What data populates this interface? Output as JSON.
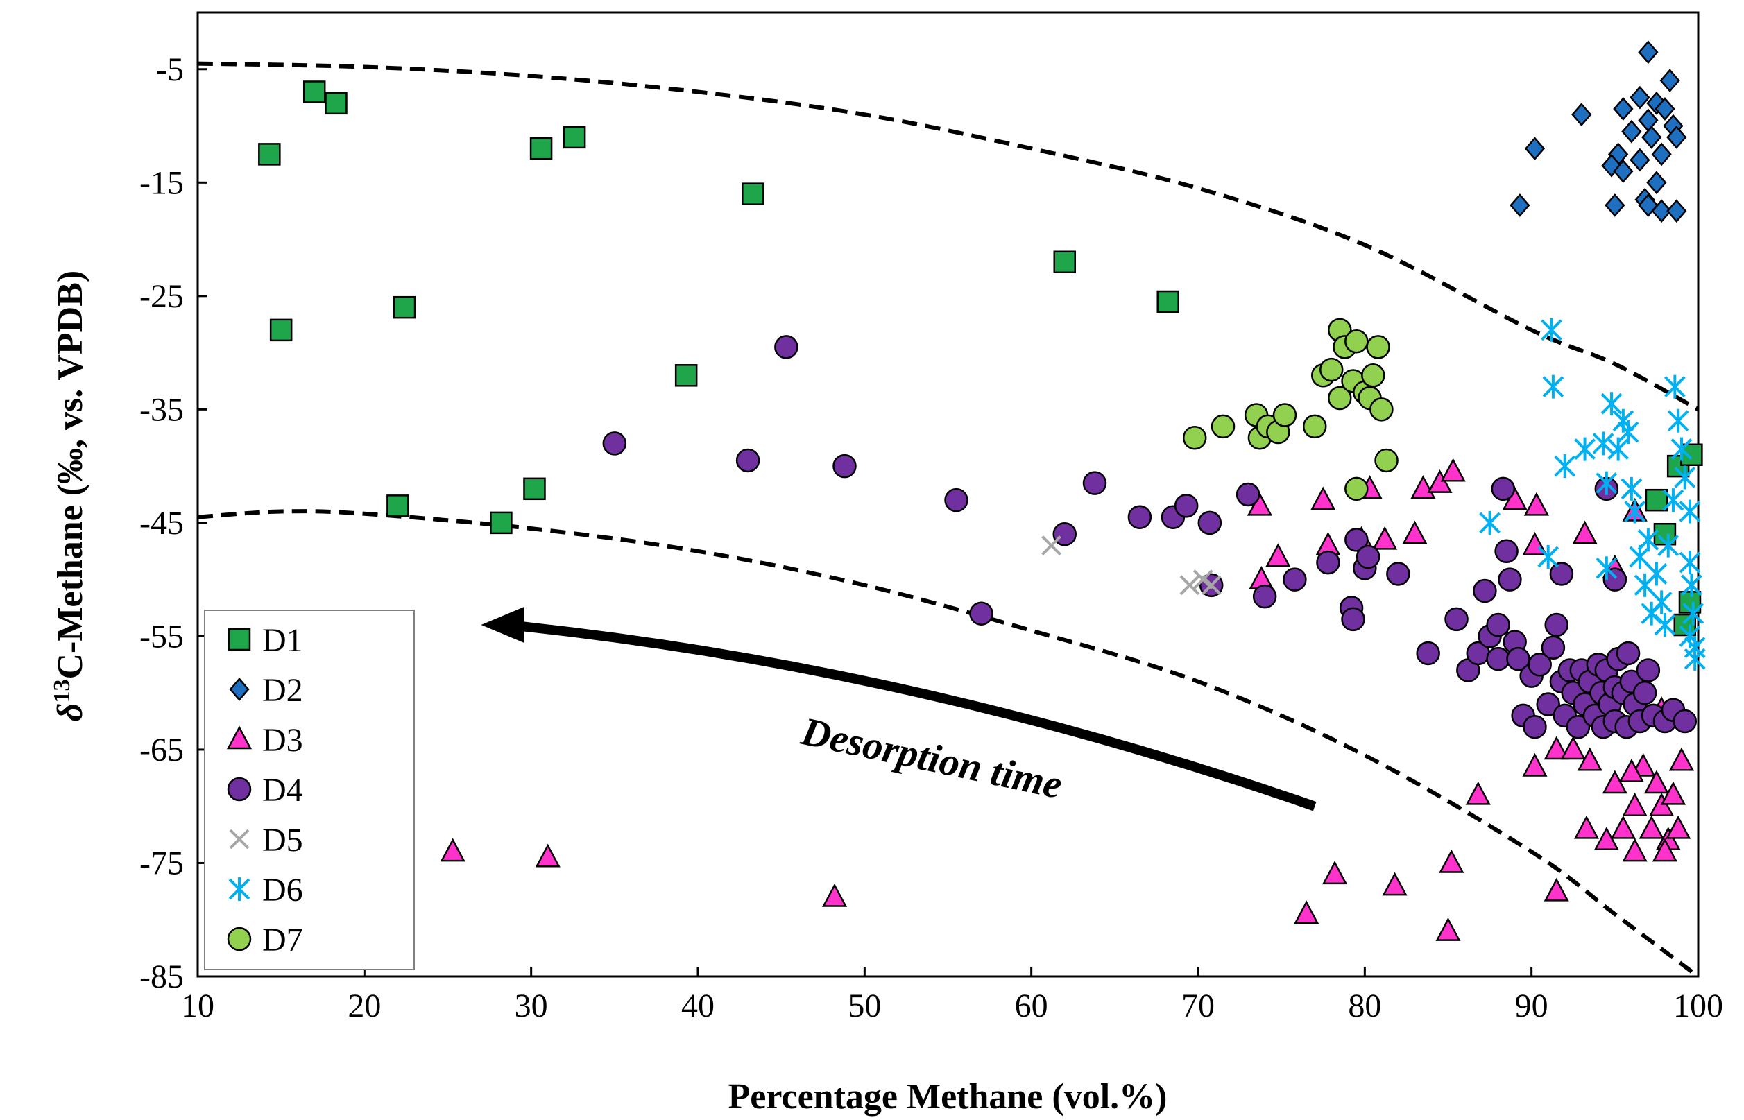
{
  "chart_data": {
    "type": "scatter",
    "title": "",
    "xlabel": "Percentage Methane (vol.%)",
    "ylabel_parts": [
      "δ",
      "13",
      "C-Methane (‰, vs. VPDB)"
    ],
    "xlim": [
      10,
      100
    ],
    "ylim": [
      -85,
      0
    ],
    "xticks": [
      10,
      20,
      30,
      40,
      50,
      60,
      70,
      80,
      90,
      100
    ],
    "yticks": [
      -5,
      -15,
      -25,
      -35,
      -45,
      -55,
      -65,
      -75,
      -85
    ],
    "grid": false,
    "legend_position": "bottom-left",
    "annotation": {
      "text": "Desorption time",
      "arrow_from": [
        77,
        -70
      ],
      "arrow_to": [
        27,
        -54
      ]
    },
    "envelope_curves": [
      {
        "name": "upper-bound",
        "points": [
          [
            10,
            -4.5
          ],
          [
            20,
            -4.8
          ],
          [
            30,
            -5.6
          ],
          [
            40,
            -7
          ],
          [
            50,
            -9
          ],
          [
            60,
            -12
          ],
          [
            70,
            -15.5
          ],
          [
            80,
            -20.5
          ],
          [
            90,
            -28
          ],
          [
            95,
            -31
          ],
          [
            100,
            -35
          ]
        ]
      },
      {
        "name": "lower-bound",
        "points": [
          [
            10,
            -44.5
          ],
          [
            15,
            -44
          ],
          [
            20,
            -44.2
          ],
          [
            30,
            -45.5
          ],
          [
            40,
            -47.5
          ],
          [
            50,
            -50.5
          ],
          [
            60,
            -54.5
          ],
          [
            70,
            -59
          ],
          [
            80,
            -65.5
          ],
          [
            90,
            -74
          ],
          [
            95,
            -79.5
          ],
          [
            100,
            -85
          ]
        ]
      }
    ],
    "series": [
      {
        "name": "D1",
        "marker": "square",
        "color": "#1fa64a",
        "points": [
          [
            14.3,
            -12.5
          ],
          [
            17,
            -7
          ],
          [
            18.3,
            -8
          ],
          [
            15,
            -28
          ],
          [
            22.4,
            -26
          ],
          [
            30.6,
            -12
          ],
          [
            32.6,
            -11
          ],
          [
            43.3,
            -16
          ],
          [
            39.3,
            -32
          ],
          [
            22,
            -43.5
          ],
          [
            28.2,
            -45
          ],
          [
            30.2,
            -42
          ],
          [
            62,
            -22
          ],
          [
            68.2,
            -25.5
          ],
          [
            97.5,
            -43
          ],
          [
            98,
            -46
          ],
          [
            98.8,
            -40
          ],
          [
            99.6,
            -39
          ],
          [
            99.2,
            -54
          ],
          [
            99.5,
            -52
          ]
        ]
      },
      {
        "name": "D2",
        "marker": "diamond",
        "color": "#1f6fc0",
        "points": [
          [
            97,
            -3.5
          ],
          [
            98.3,
            -6
          ],
          [
            96.5,
            -7.5
          ],
          [
            97.5,
            -8
          ],
          [
            95.5,
            -8.5
          ],
          [
            98,
            -8.5
          ],
          [
            93,
            -9
          ],
          [
            97,
            -9.5
          ],
          [
            98.5,
            -10
          ],
          [
            96,
            -10.5
          ],
          [
            97.2,
            -11
          ],
          [
            98.7,
            -11
          ],
          [
            90.2,
            -12
          ],
          [
            95.2,
            -12.5
          ],
          [
            97.8,
            -12.5
          ],
          [
            96.5,
            -13
          ],
          [
            94.8,
            -13.5
          ],
          [
            95.5,
            -14
          ],
          [
            97.5,
            -15
          ],
          [
            89.3,
            -17
          ],
          [
            95,
            -17
          ],
          [
            96.8,
            -16.5
          ],
          [
            97.8,
            -17.5
          ],
          [
            98.7,
            -17.5
          ],
          [
            97,
            -17
          ]
        ]
      },
      {
        "name": "D3",
        "marker": "triangle",
        "color": "#ff33cc",
        "points": [
          [
            25.3,
            -74
          ],
          [
            31,
            -74.5
          ],
          [
            48.2,
            -78
          ],
          [
            76.5,
            -79.5
          ],
          [
            78.2,
            -76
          ],
          [
            81.8,
            -77
          ],
          [
            85,
            -81
          ],
          [
            85.2,
            -75
          ],
          [
            86.8,
            -69
          ],
          [
            91.5,
            -77.5
          ],
          [
            73.7,
            -43.5
          ],
          [
            73.8,
            -50
          ],
          [
            74.8,
            -48
          ],
          [
            77.5,
            -43
          ],
          [
            77.8,
            -47
          ],
          [
            79.8,
            -46.5
          ],
          [
            80.3,
            -42
          ],
          [
            81.2,
            -46.5
          ],
          [
            83,
            -46
          ],
          [
            83.5,
            -42
          ],
          [
            84.5,
            -41.5
          ],
          [
            85.3,
            -40.5
          ],
          [
            89,
            -43
          ],
          [
            90.3,
            -43.5
          ],
          [
            90.2,
            -47
          ],
          [
            93.2,
            -46
          ],
          [
            95,
            -49
          ],
          [
            96.2,
            -44
          ],
          [
            90.2,
            -66.5
          ],
          [
            91.5,
            -65
          ],
          [
            92.5,
            -65
          ],
          [
            93.5,
            -66
          ],
          [
            93.3,
            -72
          ],
          [
            94.5,
            -73
          ],
          [
            95,
            -68
          ],
          [
            96.2,
            -70
          ],
          [
            96.2,
            -74
          ],
          [
            96.7,
            -66.5
          ],
          [
            97.2,
            -72
          ],
          [
            97.5,
            -68
          ],
          [
            97.8,
            -70
          ],
          [
            98.2,
            -73
          ],
          [
            98,
            -74
          ],
          [
            98.5,
            -69
          ],
          [
            98.8,
            -72
          ],
          [
            99,
            -66
          ],
          [
            96.3,
            -62
          ],
          [
            97.8,
            -61.5
          ],
          [
            96,
            -67
          ],
          [
            95.5,
            -72
          ]
        ]
      },
      {
        "name": "D4",
        "marker": "circle",
        "color": "#7030a0",
        "points": [
          [
            45.3,
            -29.5
          ],
          [
            35,
            -38
          ],
          [
            43,
            -39.5
          ],
          [
            48.8,
            -40
          ],
          [
            55.5,
            -43
          ],
          [
            63.8,
            -41.5
          ],
          [
            62,
            -46
          ],
          [
            57,
            -53
          ],
          [
            66.5,
            -44.5
          ],
          [
            68.5,
            -44.5
          ],
          [
            69.3,
            -43.5
          ],
          [
            70.7,
            -45
          ],
          [
            70.8,
            -50.5
          ],
          [
            73,
            -42.5
          ],
          [
            74,
            -51.5
          ],
          [
            75.8,
            -50
          ],
          [
            77.8,
            -48.5
          ],
          [
            79.2,
            -52.5
          ],
          [
            79.3,
            -53.5
          ],
          [
            79.5,
            -46.5
          ],
          [
            80,
            -49
          ],
          [
            80.2,
            -48
          ],
          [
            82,
            -49.5
          ],
          [
            83.8,
            -56.5
          ],
          [
            85.5,
            -53.5
          ],
          [
            86.2,
            -58
          ],
          [
            86.8,
            -56.5
          ],
          [
            87.2,
            -51
          ],
          [
            87.5,
            -55
          ],
          [
            88,
            -57
          ],
          [
            88,
            -54
          ],
          [
            88.3,
            -42
          ],
          [
            88.5,
            -47.5
          ],
          [
            88.7,
            -50
          ],
          [
            89,
            -55.5
          ],
          [
            89.2,
            -57
          ],
          [
            89.5,
            -62
          ],
          [
            90,
            -58.5
          ],
          [
            90.2,
            -63
          ],
          [
            90.5,
            -57.5
          ],
          [
            91,
            -61
          ],
          [
            91.3,
            -56
          ],
          [
            91.5,
            -54
          ],
          [
            91.8,
            -59
          ],
          [
            91.8,
            -49.5
          ],
          [
            92,
            -62
          ],
          [
            92.3,
            -58
          ],
          [
            92.5,
            -60
          ],
          [
            92.8,
            -63
          ],
          [
            93,
            -58
          ],
          [
            93.2,
            -61
          ],
          [
            93.5,
            -59
          ],
          [
            93.8,
            -62
          ],
          [
            94,
            -57.5
          ],
          [
            94.2,
            -60
          ],
          [
            94.3,
            -63
          ],
          [
            94.5,
            -58
          ],
          [
            94.7,
            -61
          ],
          [
            95,
            -59.5
          ],
          [
            95,
            -62.5
          ],
          [
            95.2,
            -57
          ],
          [
            95.5,
            -60
          ],
          [
            95.7,
            -63
          ],
          [
            95.8,
            -56.5
          ],
          [
            96,
            -59
          ],
          [
            96.2,
            -61
          ],
          [
            96.5,
            -62.5
          ],
          [
            96.8,
            -60
          ],
          [
            97,
            -58
          ],
          [
            97.3,
            -62
          ],
          [
            98,
            -62.5
          ],
          [
            98.5,
            -61.5
          ],
          [
            99.2,
            -62.5
          ],
          [
            94.5,
            -42
          ],
          [
            95,
            -50
          ]
        ]
      },
      {
        "name": "D5",
        "marker": "x",
        "color": "#a6a6a6",
        "points": [
          [
            61.2,
            -47
          ],
          [
            69.5,
            -50.5
          ],
          [
            70.3,
            -50
          ],
          [
            70.8,
            -50.5
          ]
        ]
      },
      {
        "name": "D6",
        "marker": "asterisk",
        "color": "#00b0f0",
        "points": [
          [
            91.2,
            -28
          ],
          [
            91.3,
            -33
          ],
          [
            92,
            -40
          ],
          [
            93.2,
            -38.5
          ],
          [
            94.3,
            -38
          ],
          [
            94.8,
            -34.5
          ],
          [
            94.5,
            -41.5
          ],
          [
            95.2,
            -38.5
          ],
          [
            95.5,
            -36
          ],
          [
            95.8,
            -37
          ],
          [
            96,
            -42
          ],
          [
            96.2,
            -44
          ],
          [
            96.5,
            -48
          ],
          [
            96.8,
            -50.5
          ],
          [
            97,
            -46.5
          ],
          [
            97.2,
            -53
          ],
          [
            97.5,
            -49.5
          ],
          [
            97.8,
            -52
          ],
          [
            98,
            -54
          ],
          [
            98.2,
            -47
          ],
          [
            98.5,
            -43
          ],
          [
            98.6,
            -33
          ],
          [
            98.8,
            -36
          ],
          [
            99,
            -38.5
          ],
          [
            99.2,
            -41
          ],
          [
            99.5,
            -44
          ],
          [
            99.5,
            -48.5
          ],
          [
            99.6,
            -50.5
          ],
          [
            99.7,
            -53
          ],
          [
            99.8,
            -56
          ],
          [
            99.8,
            -57
          ],
          [
            99.5,
            -55
          ],
          [
            87.5,
            -45
          ],
          [
            91,
            -48
          ],
          [
            94.5,
            -49
          ]
        ]
      },
      {
        "name": "D7",
        "marker": "circle",
        "color": "#92d050",
        "points": [
          [
            69.8,
            -37.5
          ],
          [
            71.5,
            -36.5
          ],
          [
            73.5,
            -35.5
          ],
          [
            73.7,
            -37.5
          ],
          [
            74.2,
            -36.5
          ],
          [
            74.8,
            -37
          ],
          [
            75.2,
            -35.5
          ],
          [
            77,
            -36.5
          ],
          [
            77.5,
            -32
          ],
          [
            78,
            -31.5
          ],
          [
            78.5,
            -34
          ],
          [
            78.5,
            -28
          ],
          [
            78.8,
            -29.5
          ],
          [
            79.3,
            -32.5
          ],
          [
            79.5,
            -29
          ],
          [
            79.5,
            -42
          ],
          [
            80,
            -33.5
          ],
          [
            80.3,
            -34
          ],
          [
            80.5,
            -32
          ],
          [
            80.8,
            -29.5
          ],
          [
            81,
            -35
          ],
          [
            81.3,
            -39.5
          ]
        ]
      }
    ]
  }
}
